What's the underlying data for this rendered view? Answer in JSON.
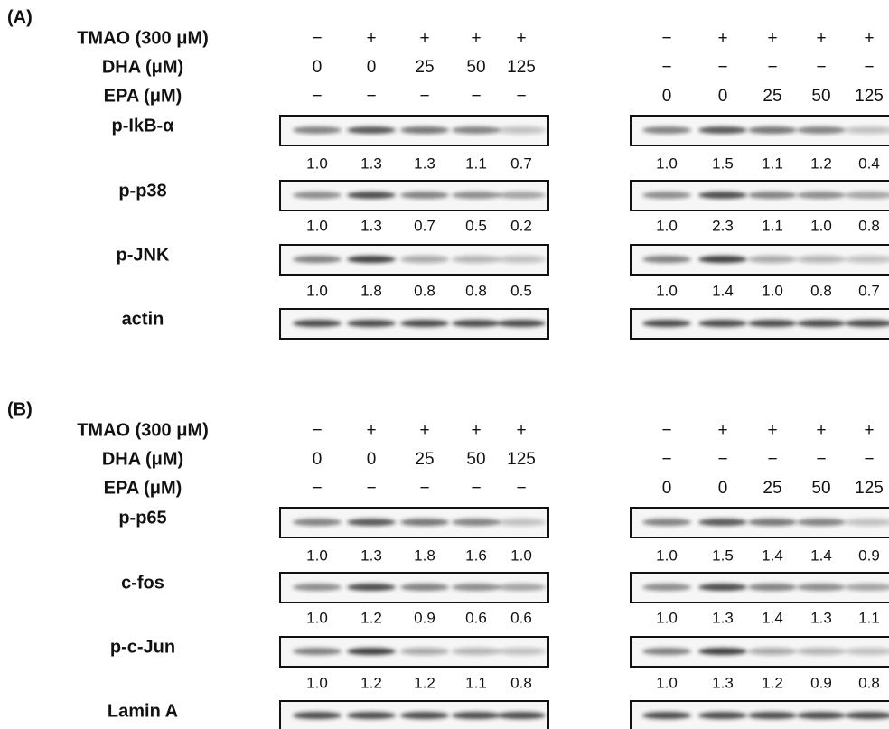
{
  "panels": [
    {
      "label": "(A)",
      "conditions": [
        {
          "name": "TMAO (300 μM)",
          "left": [
            "−",
            "+",
            "+",
            "+",
            "+"
          ],
          "right": [
            "−",
            "+",
            "+",
            "+",
            "+"
          ]
        },
        {
          "name": "DHA (μM)",
          "left": [
            "0",
            "0",
            "25",
            "50",
            "125"
          ],
          "right": [
            "−",
            "−",
            "−",
            "−",
            "−"
          ]
        },
        {
          "name": "EPA (μM)",
          "left": [
            "−",
            "−",
            "−",
            "−",
            "−"
          ],
          "right": [
            "0",
            "0",
            "25",
            "50",
            "125"
          ]
        }
      ],
      "blots": [
        {
          "name": "p-IkB-α",
          "left": [
            "1.0",
            "1.3",
            "1.3",
            "1.1",
            "0.7"
          ],
          "right": [
            "1.0",
            "1.5",
            "1.1",
            "1.2",
            "0.4"
          ]
        },
        {
          "name": "p-p38",
          "left": [
            "1.0",
            "1.3",
            "0.7",
            "0.5",
            "0.2"
          ],
          "right": [
            "1.0",
            "2.3",
            "1.1",
            "1.0",
            "0.8"
          ]
        },
        {
          "name": "p-JNK",
          "left": [
            "1.0",
            "1.8",
            "0.8",
            "0.8",
            "0.5"
          ],
          "right": [
            "1.0",
            "1.4",
            "1.0",
            "0.8",
            "0.7"
          ]
        },
        {
          "name": "actin"
        }
      ]
    },
    {
      "label": "(B)",
      "conditions": [
        {
          "name": "TMAO (300 μM)",
          "left": [
            "−",
            "+",
            "+",
            "+",
            "+"
          ],
          "right": [
            "−",
            "+",
            "+",
            "+",
            "+"
          ]
        },
        {
          "name": "DHA (μM)",
          "left": [
            "0",
            "0",
            "25",
            "50",
            "125"
          ],
          "right": [
            "−",
            "−",
            "−",
            "−",
            "−"
          ]
        },
        {
          "name": "EPA (μM)",
          "left": [
            "−",
            "−",
            "−",
            "−",
            "−"
          ],
          "right": [
            "0",
            "0",
            "25",
            "50",
            "125"
          ]
        }
      ],
      "blots": [
        {
          "name": "p-p65",
          "left": [
            "1.0",
            "1.3",
            "1.8",
            "1.6",
            "1.0"
          ],
          "right": [
            "1.0",
            "1.5",
            "1.4",
            "1.4",
            "0.9"
          ]
        },
        {
          "name": "c-fos",
          "left": [
            "1.0",
            "1.2",
            "0.9",
            "0.6",
            "0.6"
          ],
          "right": [
            "1.0",
            "1.3",
            "1.4",
            "1.3",
            "1.1"
          ]
        },
        {
          "name": "p-c-Jun",
          "left": [
            "1.0",
            "1.2",
            "1.2",
            "1.1",
            "0.8"
          ],
          "right": [
            "1.0",
            "1.3",
            "1.2",
            "0.9",
            "0.8"
          ]
        },
        {
          "name": "Lamin A"
        }
      ]
    }
  ]
}
